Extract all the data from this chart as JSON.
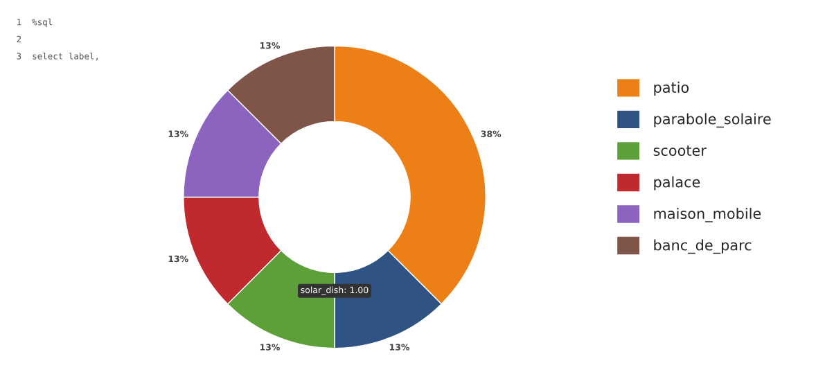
{
  "chart_data": {
    "type": "donut",
    "categories": [
      "patio",
      "parabole_solaire",
      "scooter",
      "palace",
      "maison_mobile",
      "banc_de_parc"
    ],
    "values": [
      37.5,
      12.5,
      12.5,
      12.5,
      12.5,
      12.5
    ],
    "value_labels": [
      "38%",
      "13%",
      "13%",
      "13%",
      "13%",
      "13%"
    ],
    "colors": [
      "#ec8016",
      "#2f5382",
      "#5da03a",
      "#c0292d",
      "#8c63bf",
      "#7e5548"
    ],
    "legend": "right",
    "annotations": [
      "1  %sql",
      "2",
      "3  select label,",
      "solar_dish: 1.00"
    ]
  }
}
